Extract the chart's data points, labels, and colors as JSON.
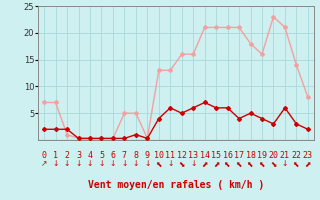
{
  "hours": [
    0,
    1,
    2,
    3,
    4,
    5,
    6,
    7,
    8,
    9,
    10,
    11,
    12,
    13,
    14,
    15,
    16,
    17,
    18,
    19,
    20,
    21,
    22,
    23
  ],
  "rafales": [
    7,
    7,
    1,
    0.3,
    0.3,
    0.3,
    0.3,
    5,
    5,
    0.3,
    13,
    13,
    16,
    16,
    21,
    21,
    21,
    21,
    18,
    16,
    23,
    21,
    14,
    8
  ],
  "vent_moyen": [
    2,
    2,
    2,
    0.3,
    0.3,
    0.3,
    0.3,
    0.3,
    1,
    0.3,
    4,
    6,
    5,
    6,
    7,
    6,
    6,
    4,
    5,
    4,
    3,
    6,
    3,
    2
  ],
  "rafales_color": "#f4a0a0",
  "vent_moyen_color": "#cc0000",
  "bg_color": "#cef0f0",
  "grid_color": "#a8d8d8",
  "xlabel": "Vent moyen/en rafales ( km/h )",
  "ylim": [
    0,
    25
  ],
  "yticks": [
    5,
    10,
    15,
    20,
    25
  ],
  "ytick_labels": [
    "5",
    "10",
    "15",
    "20",
    "25"
  ],
  "marker": "D",
  "marker_size": 2,
  "linewidth": 1.0,
  "label_fontsize": 7,
  "tick_fontsize": 6,
  "arrow_symbols": [
    "↗",
    "↓",
    "↓",
    "↓",
    "↓",
    "↓",
    "↓",
    "↓",
    "↓",
    "↓",
    "⬉",
    "↓",
    "⬊",
    "↓",
    "⬈",
    "⬈",
    "⬉",
    "⬉",
    "⬉",
    "⬉",
    "⬊",
    "↓",
    "⬉",
    "⬈"
  ]
}
